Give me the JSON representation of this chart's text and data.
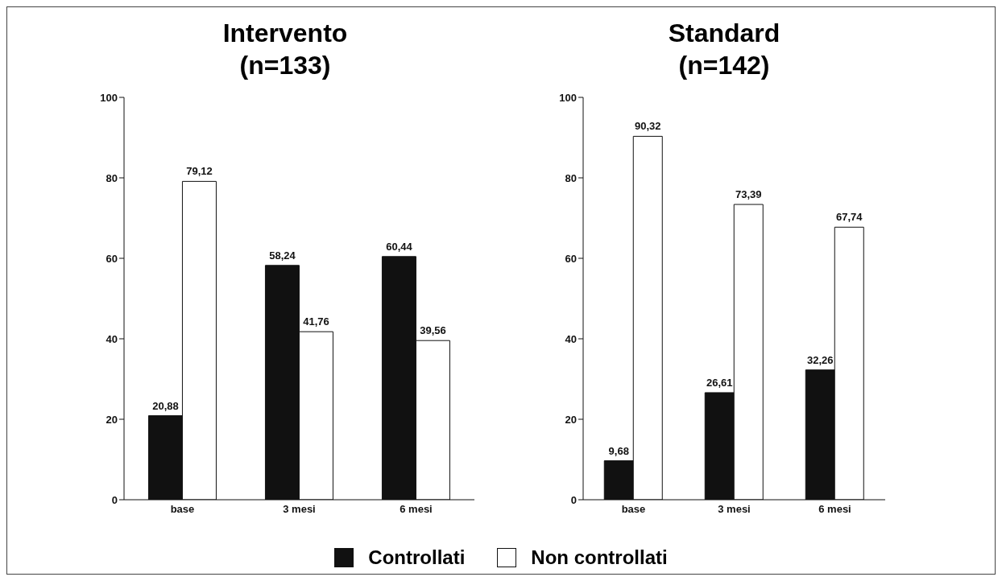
{
  "chart_data": [
    {
      "type": "bar",
      "title": "Intervento\n(n=133)",
      "categories": [
        "base",
        "3 mesi",
        "6 mesi"
      ],
      "series": [
        {
          "name": "Controllati",
          "color": "#111111",
          "values": [
            20.88,
            58.24,
            60.44
          ],
          "value_labels": [
            "20,88",
            "58,24",
            "60,44"
          ]
        },
        {
          "name": "Non controllati",
          "color": "#ffffff",
          "values": [
            79.12,
            41.76,
            39.56
          ],
          "value_labels": [
            "79,12",
            "41,76",
            "39,56"
          ]
        }
      ],
      "ylim": [
        0,
        100
      ],
      "yticks": [
        0,
        20,
        40,
        60,
        80,
        100
      ],
      "grid": false,
      "legend": "bottom"
    },
    {
      "type": "bar",
      "title": "Standard\n(n=142)",
      "categories": [
        "base",
        "3 mesi",
        "6 mesi"
      ],
      "series": [
        {
          "color": "#111111",
          "values": [
            9.68,
            26.61,
            32.26
          ],
          "value_labels": [
            "9,68",
            "26,61",
            "32,26"
          ]
        },
        {
          "color": "#ffffff",
          "values": [
            90.32,
            73.39,
            67.74
          ],
          "value_labels": [
            "90,32",
            "73,39",
            "67,74"
          ]
        }
      ],
      "ylim": [
        0,
        100
      ],
      "yticks": [
        0,
        20,
        40,
        60,
        80,
        100
      ],
      "grid": false
    }
  ]
}
